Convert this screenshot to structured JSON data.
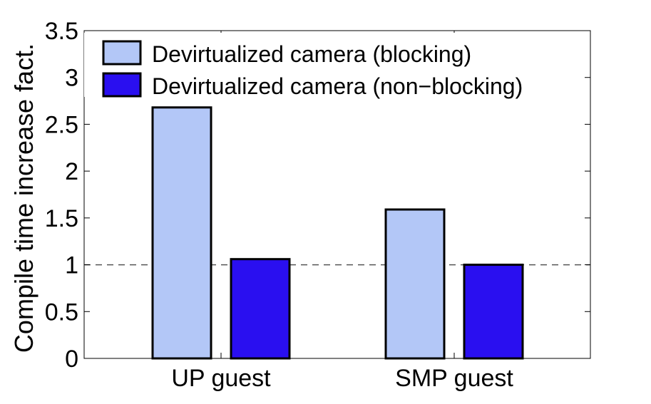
{
  "chart_data": {
    "type": "bar",
    "title": "",
    "xlabel": "",
    "ylabel": "Compile time increase fact.",
    "categories": [
      "UP guest",
      "SMP guest"
    ],
    "series": [
      {
        "name": "Devirtualized camera (blocking)",
        "values": [
          2.68,
          1.59
        ],
        "color": "#b3c7f7"
      },
      {
        "name": "Devirtualized camera (non−blocking)",
        "values": [
          1.06,
          1.0
        ],
        "color": "#2a0ff0"
      }
    ],
    "ylim": [
      0,
      3.5
    ],
    "yticks": [
      "0",
      "0.5",
      "1",
      "1.5",
      "2",
      "2.5",
      "3",
      "3.5"
    ],
    "reference_line": 1,
    "legend_position": "top-left",
    "grid": false
  }
}
